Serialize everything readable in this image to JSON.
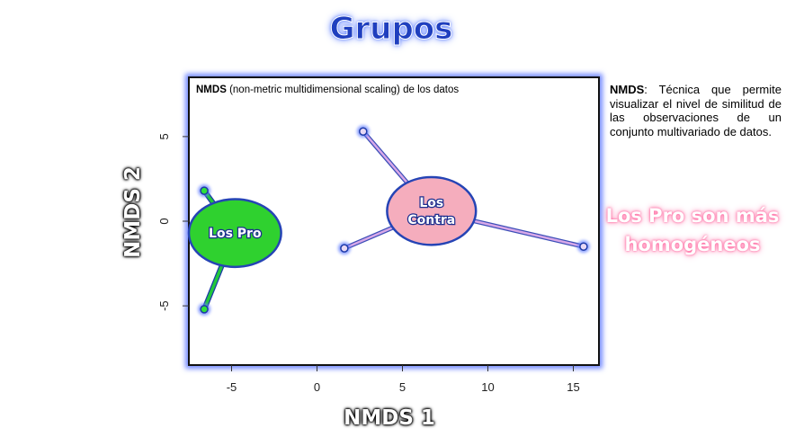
{
  "title": "Grupos",
  "description": {
    "term": "NMDS",
    "text": ": Técnica que permite visualizar el nivel  de similitud de las observaciones de un conjunto multivariado de datos."
  },
  "conclusion": "Los Pro son más homogéneos",
  "chart_data": {
    "type": "scatter",
    "title_bold": "NMDS",
    "title_rest": " (non-metric multidimensional scaling) de los datos",
    "xlabel": "NMDS 1",
    "ylabel": "NMDS 2",
    "xlim": [
      -7.5,
      16.5
    ],
    "ylim": [
      -8.5,
      8.5
    ],
    "xticks": [
      -5,
      0,
      5,
      10,
      15
    ],
    "yticks": [
      -5,
      0,
      5
    ],
    "groups": [
      {
        "name": "Los Pro",
        "color": "#22c83a",
        "fill": "#2fd12f",
        "centroid": [
          -4.8,
          -0.7
        ],
        "ellipse_rx": 2.7,
        "ellipse_ry": 2.0,
        "points": [
          [
            -6.6,
            1.8
          ],
          [
            -6.6,
            -5.2
          ]
        ]
      },
      {
        "name": "Los Contra",
        "label_lines": [
          "Los",
          "Contra"
        ],
        "color": "#d8a8e8",
        "fill": "#f5adbd",
        "centroid": [
          6.7,
          0.6
        ],
        "ellipse_rx": 2.6,
        "ellipse_ry": 2.0,
        "points": [
          [
            2.7,
            5.3
          ],
          [
            1.6,
            -1.6
          ],
          [
            15.6,
            -1.5
          ]
        ]
      }
    ]
  }
}
